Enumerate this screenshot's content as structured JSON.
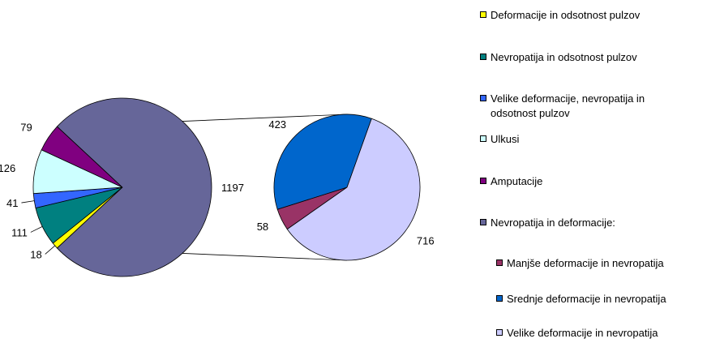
{
  "chart_data": {
    "type": "pie",
    "subtype": "pie-of-pie",
    "main_pie": {
      "slices": [
        {
          "label": "Deformacije in odsotnost pulzov",
          "value": 18,
          "color": "#ffff00"
        },
        {
          "label": "Nevropatija in odsotnost pulzov",
          "value": 111,
          "color": "#008080"
        },
        {
          "label": "Velike deformacije, nevropatija in odsotnost pulzov",
          "value": 41,
          "color": "#3366ff"
        },
        {
          "label": "Ulkusi",
          "value": 126,
          "color": "#ccffff"
        },
        {
          "label": "Amputacije",
          "value": 79,
          "color": "#800080"
        },
        {
          "label": "Nevropatija in deformacije:",
          "value": 1197,
          "color": "#666699"
        }
      ]
    },
    "secondary_pie": {
      "parent": "Nevropatija in deformacije:",
      "slices": [
        {
          "label": "Manjše deformacije in nevropatija",
          "value": 58,
          "color": "#993366"
        },
        {
          "label": "Srednje deformacije in nevropatija",
          "value": 423,
          "color": "#0066cc"
        },
        {
          "label": "Velike deformacije in nevropatija",
          "value": 716,
          "color": "#ccccff"
        }
      ]
    },
    "legend": {
      "position": "right",
      "items": [
        {
          "label": "Deformacije in odsotnost pulzov",
          "color": "#ffff00"
        },
        {
          "label": "Nevropatija in odsotnost pulzov",
          "color": "#008080"
        },
        {
          "label": "Velike deformacije, nevropatija in odsotnost pulzov",
          "color": "#3366ff"
        },
        {
          "label": "Ulkusi",
          "color": "#ccffff"
        },
        {
          "label": "Amputacije",
          "color": "#800080"
        },
        {
          "label": "Nevropatija in deformacije:",
          "color": "#666699"
        },
        {
          "label": "Manjše deformacije in nevropatija",
          "color": "#993366"
        },
        {
          "label": "Srednje deformacije in nevropatija",
          "color": "#0066cc"
        },
        {
          "label": "Velike deformacije in nevropatija",
          "color": "#ccccff"
        }
      ]
    }
  }
}
